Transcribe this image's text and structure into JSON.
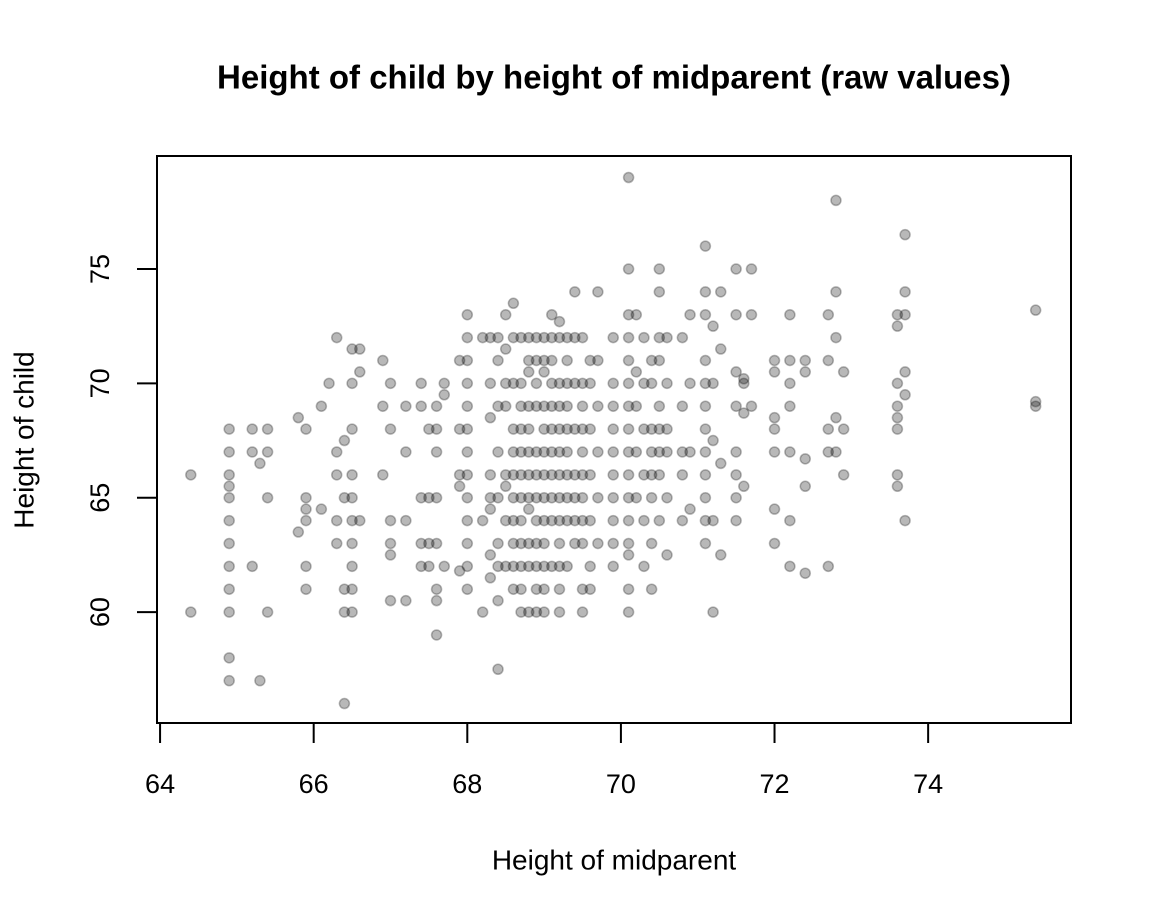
{
  "chart_data": {
    "type": "scatter",
    "title": "Height of child by height of midparent (raw values)",
    "x_label": "Height of midparent",
    "y_label": "Height of child",
    "color": "rgba(0,0,0,0.28)",
    "xlim": [
      63.96,
      75.86
    ],
    "ylim": [
      55.15,
      79.94
    ],
    "xticks": [
      64,
      66,
      68,
      70,
      72,
      74
    ],
    "yticks": [
      60,
      65,
      70,
      75
    ],
    "x": [
      64.4,
      64.4,
      64.9,
      64.9,
      64.9,
      64.9,
      64.9,
      64.9,
      64.9,
      64.9,
      64.9,
      64.9,
      64.9,
      64.9,
      65.2,
      65.2,
      65.2,
      65.3,
      65.3,
      65.4,
      65.4,
      65.4,
      65.4,
      65.8,
      65.8,
      65.9,
      65.9,
      65.9,
      65.9,
      65.9,
      65.9,
      66.1,
      66.1,
      66.2,
      66.3,
      66.3,
      66.3,
      66.3,
      66.3,
      66.4,
      66.4,
      66.4,
      66.4,
      66.4,
      66.5,
      66.5,
      66.5,
      66.5,
      66.5,
      66.5,
      66.5,
      66.5,
      66.5,
      66.5,
      66.6,
      66.6,
      66.6,
      66.9,
      66.9,
      66.9,
      67.0,
      67.0,
      67.0,
      67.0,
      67.0,
      67.0,
      67.2,
      67.2,
      67.2,
      67.2,
      67.4,
      67.4,
      67.4,
      67.4,
      67.4,
      67.5,
      67.5,
      67.5,
      67.5,
      67.6,
      67.6,
      67.6,
      67.6,
      67.6,
      67.6,
      67.6,
      67.6,
      67.7,
      67.7,
      67.7,
      67.9,
      67.9,
      67.9,
      67.9,
      67.9,
      68.0,
      68.0,
      68.0,
      68.0,
      68.0,
      68.0,
      68.0,
      68.0,
      68.0,
      68.0,
      68.0,
      68.0,
      68.0,
      68.2,
      68.2,
      68.2,
      68.3,
      68.3,
      68.3,
      68.3,
      68.3,
      68.3,
      68.3,
      68.3,
      68.4,
      68.4,
      68.4,
      68.4,
      68.4,
      68.4,
      68.4,
      68.4,
      68.4,
      68.5,
      68.5,
      68.5,
      68.5,
      68.5,
      68.5,
      68.5,
      68.5,
      68.6,
      68.6,
      68.6,
      68.6,
      68.6,
      68.6,
      68.6,
      68.6,
      68.6,
      68.6,
      68.6,
      68.7,
      68.7,
      68.7,
      68.7,
      68.7,
      68.7,
      68.7,
      68.7,
      68.7,
      68.7,
      68.7,
      68.7,
      68.8,
      68.8,
      68.8,
      68.8,
      68.8,
      68.8,
      68.8,
      68.8,
      68.8,
      68.8,
      68.8,
      68.8,
      68.9,
      68.9,
      68.9,
      68.9,
      68.9,
      68.9,
      68.9,
      68.9,
      68.9,
      68.9,
      68.9,
      68.9,
      69.0,
      69.0,
      69.0,
      69.0,
      69.0,
      69.0,
      69.0,
      69.0,
      69.0,
      69.0,
      69.0,
      69.0,
      69.0,
      69.1,
      69.1,
      69.1,
      69.1,
      69.1,
      69.1,
      69.1,
      69.1,
      69.1,
      69.1,
      69.1,
      69.2,
      69.2,
      69.2,
      69.2,
      69.2,
      69.2,
      69.2,
      69.2,
      69.2,
      69.2,
      69.2,
      69.2,
      69.2,
      69.3,
      69.3,
      69.3,
      69.3,
      69.3,
      69.3,
      69.3,
      69.3,
      69.3,
      69.3,
      69.4,
      69.4,
      69.4,
      69.4,
      69.4,
      69.4,
      69.4,
      69.4,
      69.5,
      69.5,
      69.5,
      69.5,
      69.5,
      69.5,
      69.5,
      69.5,
      69.5,
      69.5,
      69.5,
      69.6,
      69.6,
      69.6,
      69.6,
      69.6,
      69.6,
      69.6,
      69.7,
      69.7,
      69.7,
      69.7,
      69.7,
      69.7,
      69.9,
      69.9,
      69.9,
      69.9,
      69.9,
      69.9,
      69.9,
      69.9,
      69.9,
      69.9,
      70.1,
      70.1,
      70.1,
      70.1,
      70.1,
      70.1,
      70.1,
      70.1,
      70.1,
      70.1,
      70.1,
      70.1,
      70.1,
      70.1,
      70.1,
      70.1,
      70.2,
      70.2,
      70.2,
      70.2,
      70.2,
      70.3,
      70.3,
      70.3,
      70.3,
      70.3,
      70.3,
      70.4,
      70.4,
      70.4,
      70.4,
      70.4,
      70.4,
      70.4,
      70.4,
      70.5,
      70.5,
      70.5,
      70.5,
      70.5,
      70.5,
      70.5,
      70.5,
      70.5,
      70.6,
      70.6,
      70.6,
      70.6,
      70.6,
      70.6,
      70.8,
      70.8,
      70.8,
      70.8,
      70.8,
      70.9,
      70.9,
      70.9,
      70.9,
      71.1,
      71.1,
      71.1,
      71.1,
      71.1,
      71.1,
      71.1,
      71.1,
      71.1,
      71.1,
      71.1,
      71.1,
      71.2,
      71.2,
      71.2,
      71.2,
      71.2,
      71.3,
      71.3,
      71.3,
      71.3,
      71.5,
      71.5,
      71.5,
      71.5,
      71.5,
      71.5,
      71.5,
      71.5,
      71.6,
      71.6,
      71.6,
      71.6,
      71.7,
      71.7,
      71.7,
      72.0,
      72.0,
      72.0,
      72.0,
      72.0,
      72.0,
      72.0,
      72.2,
      72.2,
      72.2,
      72.2,
      72.2,
      72.2,
      72.2,
      72.4,
      72.4,
      72.4,
      72.4,
      72.4,
      72.7,
      72.7,
      72.7,
      72.7,
      72.7,
      72.8,
      72.8,
      72.8,
      72.8,
      72.8,
      72.9,
      72.9,
      72.9,
      73.6,
      73.6,
      73.6,
      73.6,
      73.6,
      73.6,
      73.6,
      73.6,
      73.7,
      73.7,
      73.7,
      73.7,
      73.7,
      73.7,
      75.4,
      75.4,
      75.4
    ],
    "values": [
      66,
      60,
      68,
      67,
      66,
      65.5,
      65,
      64,
      63,
      62,
      61,
      60,
      58,
      57,
      68,
      67,
      62,
      66.5,
      57,
      68,
      67,
      65,
      60,
      68.5,
      63.5,
      68,
      65,
      64.5,
      64,
      62,
      61,
      69,
      64.5,
      70,
      72,
      67,
      66,
      64,
      63,
      67.5,
      65,
      61,
      60,
      56,
      71.5,
      70,
      68,
      66,
      65,
      64,
      63,
      62,
      61,
      60,
      71.5,
      70.5,
      64,
      71,
      69,
      66,
      70,
      68,
      64,
      63,
      62.5,
      60.5,
      69,
      67,
      64,
      60.5,
      70,
      69,
      65,
      63,
      62,
      68,
      65,
      63,
      62,
      69,
      68,
      67,
      65,
      63,
      61,
      60.5,
      59,
      70,
      69.5,
      62,
      71,
      68,
      66,
      65.5,
      61.8,
      73,
      72,
      71,
      70,
      69,
      68,
      67,
      66,
      65,
      64,
      63,
      62,
      61,
      72,
      64,
      60,
      72,
      70,
      68.5,
      66,
      65,
      64.5,
      62.5,
      61.5,
      72,
      71,
      69,
      67,
      65,
      63,
      62,
      60.5,
      57.5,
      73,
      71.5,
      70,
      69,
      66,
      65.5,
      64,
      62,
      73.5,
      72,
      70,
      68,
      67,
      66,
      65,
      64,
      63,
      62,
      61,
      72,
      70,
      69,
      68,
      67,
      66,
      65,
      64,
      63,
      62,
      61,
      60,
      72,
      71,
      70.5,
      69,
      68,
      67,
      66,
      65,
      64.5,
      63,
      62,
      60,
      72,
      71,
      70,
      69,
      67,
      66,
      65,
      64,
      63,
      62,
      61,
      60,
      72,
      71,
      70.5,
      69,
      68,
      67,
      66,
      65,
      64,
      63,
      62,
      61,
      60,
      73,
      72,
      71,
      70,
      69,
      68,
      67,
      66,
      65,
      64,
      62,
      72.7,
      72,
      70,
      69,
      68,
      67,
      66,
      65,
      64,
      63,
      62,
      61,
      60,
      72,
      71,
      70,
      69,
      68,
      67,
      66,
      65,
      64,
      62,
      74,
      72,
      70,
      68,
      66,
      65,
      64,
      63,
      72,
      70,
      69,
      68,
      67,
      66,
      65,
      64,
      63,
      61,
      60,
      71,
      70,
      68,
      66,
      64,
      62,
      61,
      74,
      71,
      69,
      67,
      65,
      63,
      72,
      70,
      69,
      68,
      67,
      66,
      65,
      64,
      63,
      62,
      79,
      75,
      73,
      72,
      71,
      70,
      69,
      68,
      67,
      66,
      65,
      64,
      63,
      62.5,
      61,
      60,
      73,
      70.5,
      69,
      67,
      65,
      72,
      70,
      68,
      66,
      64,
      62,
      71,
      70,
      68,
      67,
      66,
      65,
      63,
      61,
      75,
      74,
      72,
      71,
      69,
      68,
      67,
      66,
      64,
      72,
      70,
      68,
      67,
      65,
      62.5,
      72,
      69,
      67,
      66,
      64,
      73,
      70,
      67,
      64.5,
      76,
      74,
      73,
      71,
      70,
      69,
      68,
      67,
      66,
      65,
      64,
      63,
      72.5,
      70,
      67.5,
      64,
      60,
      74,
      71.5,
      66.5,
      62.5,
      75,
      73,
      70.5,
      69,
      67,
      66,
      65,
      64,
      70.2,
      70,
      68.7,
      65.5,
      75,
      73,
      69,
      71,
      70.5,
      68.5,
      68,
      67,
      64.5,
      63,
      73,
      71,
      70,
      69,
      67,
      64,
      62,
      71,
      70.5,
      66.7,
      65.5,
      61.7,
      73,
      71,
      68,
      67,
      62,
      78,
      74,
      72,
      68.5,
      67,
      70.5,
      68,
      66,
      73,
      72.5,
      70,
      69,
      68.5,
      68,
      66,
      65.5,
      76.5,
      74,
      73,
      70.5,
      69.5,
      64,
      73.2,
      69.2,
      69
    ]
  }
}
